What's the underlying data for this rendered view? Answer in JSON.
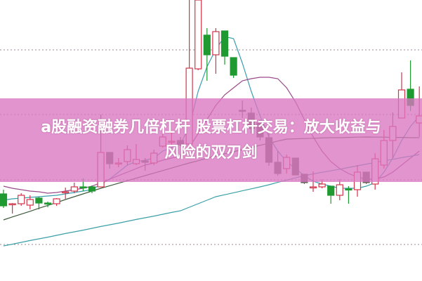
{
  "overlay": {
    "title_line1": "a股融资融券几倍杠杆 股票杠杆交易：放大收益与",
    "title_line2": "风险的双刃剑",
    "banner_color": "#da76c0"
  },
  "chart_data": {
    "type": "candlestick",
    "title": "",
    "xlabel": "",
    "ylabel": "",
    "ylim": [
      0,
      100
    ],
    "grid": "horizontal dotted",
    "colors": {
      "up": "#d2344a",
      "down": "#1f9a30",
      "flat_down": "#6b6560",
      "ma_short": "#3a9fae",
      "ma_mid": "#9a4a8a",
      "ma_long1": "#3d5a3a",
      "ma_long2": "#3aa0a8"
    },
    "candles": [
      {
        "o": 31,
        "c": 26.75,
        "h": 32.5,
        "l": 26,
        "k": "down"
      },
      {
        "o": 27.25,
        "c": 27.5,
        "h": 27.75,
        "l": 24,
        "k": "up"
      },
      {
        "o": 27.5,
        "c": 30.5,
        "h": 31.25,
        "l": 26.75,
        "k": "up"
      },
      {
        "o": 27,
        "c": 29,
        "h": 30.5,
        "l": 25.5,
        "k": "up"
      },
      {
        "o": 29.5,
        "c": 27.75,
        "h": 30,
        "l": 25.5,
        "k": "down"
      },
      {
        "o": 27.75,
        "c": 27.5,
        "h": 28.25,
        "l": 26.25,
        "k": "down"
      },
      {
        "o": 27.5,
        "c": 29.25,
        "h": 29.5,
        "l": 26.75,
        "k": "up"
      },
      {
        "o": 31.5,
        "c": 31.75,
        "h": 33.25,
        "l": 29.25,
        "k": "up"
      },
      {
        "o": 32,
        "c": 33.5,
        "h": 35,
        "l": 31.25,
        "k": "up"
      },
      {
        "o": 33.5,
        "c": 33.25,
        "h": 36.5,
        "l": 32,
        "k": "down"
      },
      {
        "o": 33.5,
        "c": 32,
        "h": 34,
        "l": 31.25,
        "k": "down"
      },
      {
        "o": 33.5,
        "c": 45.75,
        "h": 59.25,
        "l": 33.5,
        "k": "up"
      },
      {
        "o": 45.75,
        "c": 41.75,
        "h": 45.75,
        "l": 40,
        "k": "flat_down"
      },
      {
        "o": 41.75,
        "c": 42,
        "h": 43.75,
        "l": 40.5,
        "k": "up"
      },
      {
        "o": 42.5,
        "c": 46.75,
        "h": 48.25,
        "l": 41.25,
        "k": "up"
      },
      {
        "o": 41.75,
        "c": 43.25,
        "h": 48.75,
        "l": 41.25,
        "k": "up"
      },
      {
        "o": 42.75,
        "c": 42.25,
        "h": 43.75,
        "l": 39.25,
        "k": "flat_down"
      },
      {
        "o": 42,
        "c": 45.5,
        "h": 46.75,
        "l": 41.25,
        "k": "up"
      },
      {
        "o": 48,
        "c": 51.25,
        "h": 53,
        "l": 47.5,
        "k": "up"
      },
      {
        "o": 49.5,
        "c": 49.75,
        "h": 53,
        "l": 48.5,
        "k": "up"
      },
      {
        "o": 50,
        "c": 48.5,
        "h": 51.25,
        "l": 48,
        "k": "flat_down"
      },
      {
        "o": 48.75,
        "c": 75.75,
        "h": 100,
        "l": 48.75,
        "k": "up"
      },
      {
        "o": 75.5,
        "c": 100,
        "h": 100,
        "l": 75,
        "k": "up"
      },
      {
        "o": 87.5,
        "c": 80.5,
        "h": 90,
        "l": 71.25,
        "k": "down"
      },
      {
        "o": 80.5,
        "c": 88.75,
        "h": 90,
        "l": 73.75,
        "k": "up"
      },
      {
        "o": 89,
        "c": 80,
        "h": 89,
        "l": 77,
        "k": "down"
      },
      {
        "o": 79.5,
        "c": 73.25,
        "h": 79.5,
        "l": 72.25,
        "k": "down"
      },
      {
        "o": 60.75,
        "c": 60.5,
        "h": 64.25,
        "l": 58,
        "k": "flat_down"
      },
      {
        "o": 59.75,
        "c": 54.25,
        "h": 61.75,
        "l": 52.5,
        "k": "flat_down"
      },
      {
        "o": 56.25,
        "c": 51.25,
        "h": 57.5,
        "l": 50,
        "k": "flat_down"
      },
      {
        "o": 51,
        "c": 42.25,
        "h": 52.5,
        "l": 41,
        "k": "flat_down"
      },
      {
        "o": 42.25,
        "c": 38.25,
        "h": 46.25,
        "l": 37.5,
        "k": "flat_down"
      },
      {
        "o": 40,
        "c": 44,
        "h": 45,
        "l": 38.25,
        "k": "up"
      },
      {
        "o": 43.75,
        "c": 37.75,
        "h": 43.75,
        "l": 37.75,
        "k": "flat_down"
      },
      {
        "o": 38,
        "c": 35,
        "h": 38,
        "l": 34.5,
        "k": "flat_down"
      },
      {
        "o": 33.25,
        "c": 33.5,
        "h": 39,
        "l": 31.75,
        "k": "up"
      },
      {
        "o": 33.5,
        "c": 34.5,
        "h": 36.25,
        "l": 33,
        "k": "up"
      },
      {
        "o": 33.75,
        "c": 30.5,
        "h": 33.75,
        "l": 27.5,
        "k": "down"
      },
      {
        "o": 30.5,
        "c": 34.25,
        "h": 36.25,
        "l": 28.75,
        "k": "up"
      },
      {
        "o": 32.75,
        "c": 32.5,
        "h": 33.75,
        "l": 27.5,
        "k": "down"
      },
      {
        "o": 32.5,
        "c": 38.75,
        "h": 41.25,
        "l": 30,
        "k": "up"
      },
      {
        "o": 38.75,
        "c": 35,
        "h": 38.75,
        "l": 34.5,
        "k": "flat_down"
      },
      {
        "o": 34.5,
        "c": 43.5,
        "h": 45.5,
        "l": 32.5,
        "k": "up"
      },
      {
        "o": 41.25,
        "c": 50,
        "h": 53.75,
        "l": 40,
        "k": "up"
      },
      {
        "o": 50,
        "c": 55,
        "h": 60,
        "l": 43.75,
        "k": "up"
      },
      {
        "o": 58,
        "c": 68,
        "h": 74.25,
        "l": 58,
        "k": "up"
      },
      {
        "o": 68.25,
        "c": 62.5,
        "h": 78.5,
        "l": 60.5,
        "k": "down"
      },
      {
        "o": 56.25,
        "c": 58.75,
        "h": 69.25,
        "l": 51.25,
        "k": "up"
      }
    ],
    "moving_averages": [
      {
        "key": "ma_short",
        "values": [
          28.75,
          29.25,
          29.5,
          29.75,
          30,
          30.25,
          30.5,
          31,
          31.5,
          32,
          32.5,
          34.5,
          36.25,
          38.75,
          41.25,
          42.5,
          43,
          43.75,
          46.25,
          47.5,
          48.75,
          55,
          67.5,
          76.25,
          82.5,
          87,
          86.25,
          77.5,
          67.5,
          58.75,
          51.25,
          46.25,
          42.5,
          40,
          37.5,
          35.5,
          34.5,
          33.75,
          33,
          33,
          33,
          33.75,
          35,
          38.75,
          43.75,
          50,
          55,
          58.75
        ]
      },
      {
        "key": "ma_mid",
        "values": [
          33.75,
          33,
          32.5,
          32,
          31.75,
          31.25,
          31.5,
          32,
          32.5,
          33,
          33.75,
          35,
          36.25,
          37.5,
          38.75,
          40,
          41.25,
          42,
          43,
          43.75,
          44.5,
          47.5,
          52.5,
          57.5,
          62.5,
          66.25,
          68.75,
          71.25,
          72,
          72.5,
          72.5,
          72,
          68.75,
          63.75,
          57.5,
          51.25,
          46.25,
          42.5,
          40,
          38.25,
          37,
          36.25,
          36.25,
          37,
          38.75,
          41.25,
          43.75,
          46.25
        ]
      },
      {
        "key": "ma_long1",
        "values": [
          21.75,
          22.8,
          23.8,
          24.8,
          25.9,
          26.9,
          27.9,
          29,
          30,
          31,
          32,
          33,
          33.9,
          34.8,
          35.7,
          36.6,
          37.5,
          38.4,
          39.3,
          40.2,
          41.1,
          42,
          42.8,
          43.7,
          44.5,
          45.3,
          46,
          46.8,
          47.5,
          48.3,
          49,
          49.8,
          50.5,
          50.6,
          50.7,
          50.8,
          50.9,
          51,
          51,
          51.1,
          51.2,
          51.25,
          51.2,
          51.2,
          51.1,
          51.1,
          51,
          51
        ]
      },
      {
        "key": "ma_long2",
        "values": [
          12.5,
          13.1,
          13.75,
          14.4,
          15,
          15.6,
          16.25,
          16.9,
          17.5,
          18.1,
          18.75,
          19.4,
          20,
          20.6,
          21.25,
          21.9,
          22.5,
          23.1,
          23.75,
          24.4,
          25,
          26.25,
          27.5,
          28.75,
          30,
          30.7,
          31.4,
          32.1,
          32.8,
          33.5,
          34.25,
          35.1,
          35.9,
          36.7,
          37.5,
          38.1,
          38.7,
          39.2,
          39.8,
          40.4,
          41,
          41.6,
          42.2,
          42.8,
          43.3,
          43.9,
          44.4,
          45
        ]
      }
    ],
    "gridlines": [
      82.25,
      59.25,
      36,
      13
    ]
  }
}
